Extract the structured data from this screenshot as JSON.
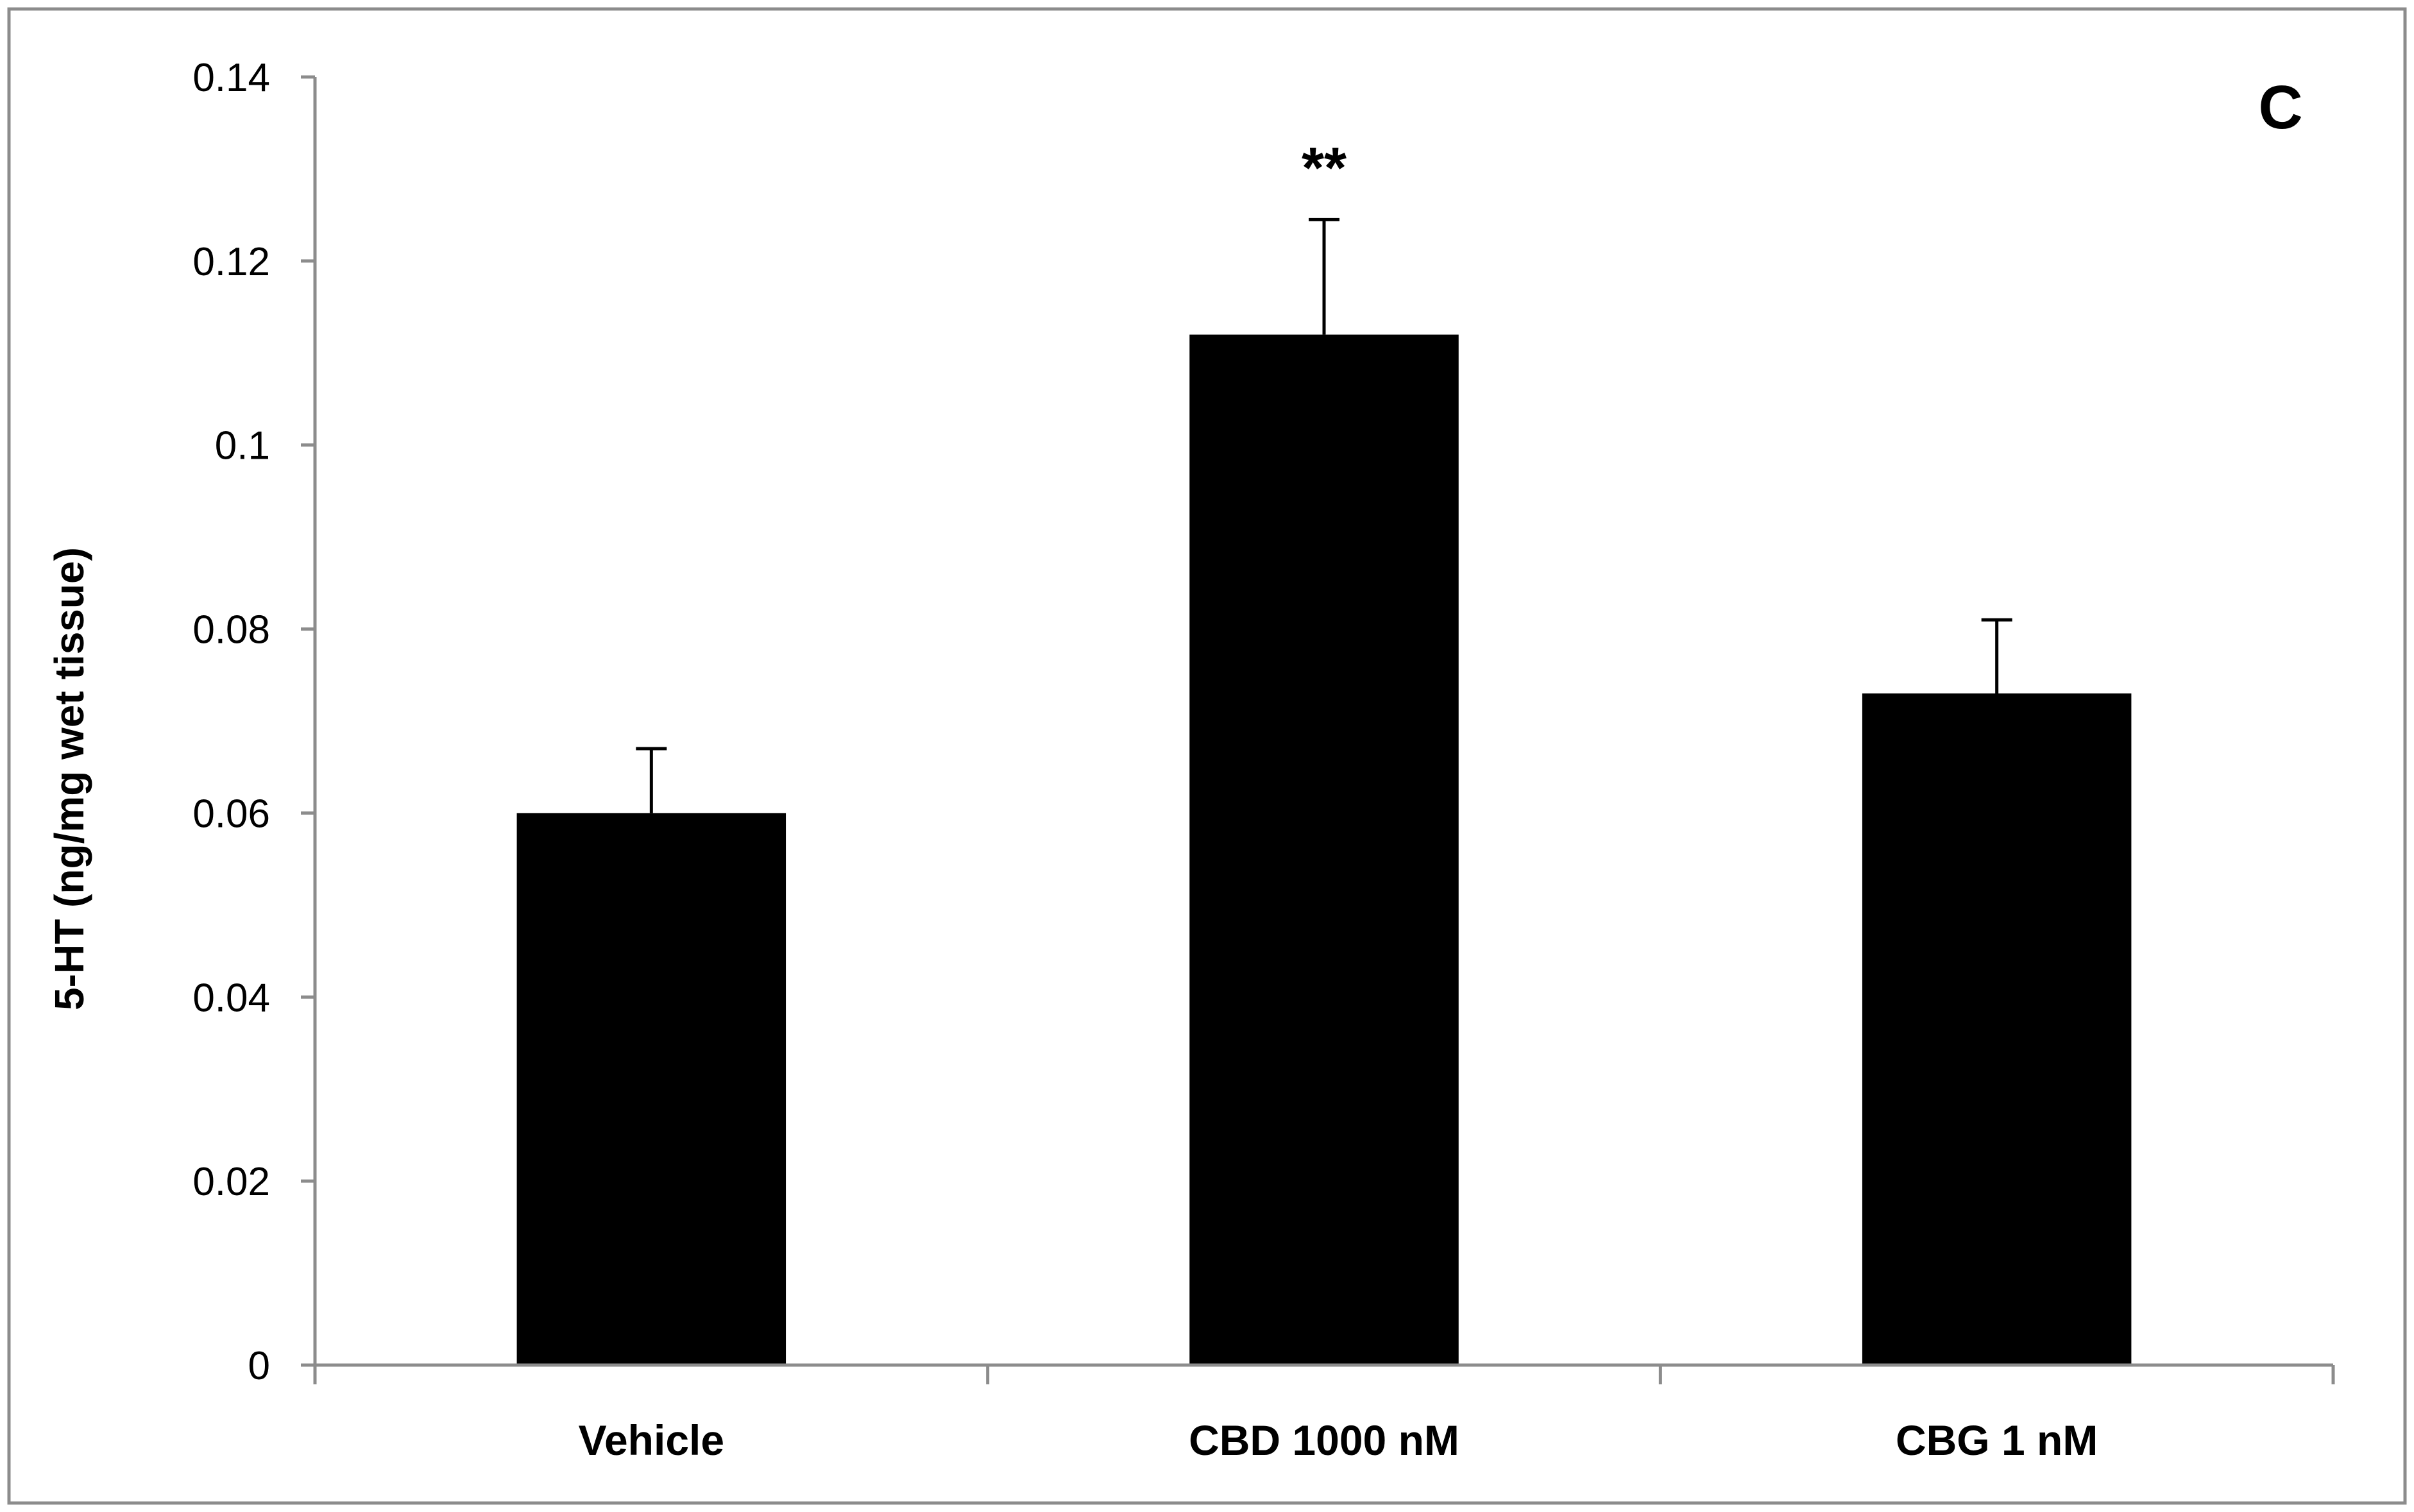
{
  "chart_data": {
    "type": "bar",
    "panel_label": "C",
    "title": "",
    "xlabel": "",
    "ylabel": "5-HT (ng/mg wet tissue)",
    "ylim": [
      0,
      0.14
    ],
    "yticks": [
      0,
      0.02,
      0.04,
      0.06,
      0.08,
      0.1,
      0.12,
      0.14
    ],
    "ytick_labels": [
      "0",
      "0.02",
      "0.04",
      "0.06",
      "0.08",
      "0.1",
      "0.12",
      "0.14"
    ],
    "categories": [
      "Vehicle",
      "CBD 1000 nM",
      "CBG 1 nM"
    ],
    "values": [
      0.06,
      0.112,
      0.073
    ],
    "errors": [
      0.007,
      0.0125,
      0.008
    ],
    "annotations": [
      "",
      "**",
      ""
    ],
    "bar_color": "#000000",
    "grid": false,
    "legend": "none"
  }
}
